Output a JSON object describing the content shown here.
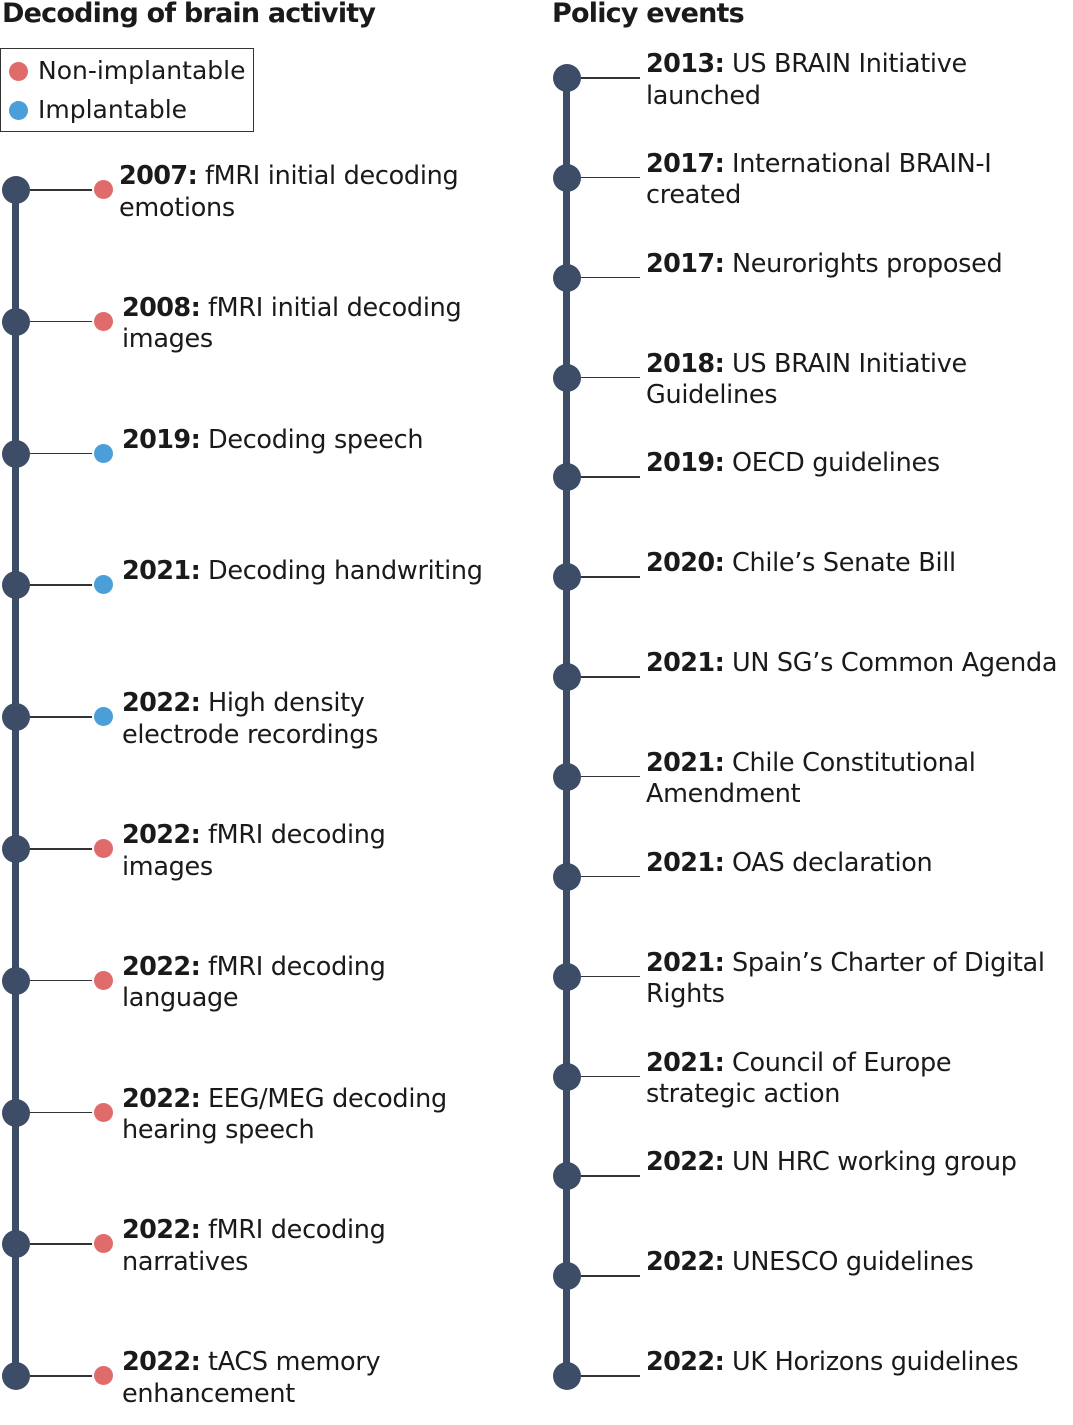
{
  "left": {
    "title": "Decoding of brain activity",
    "legend": [
      {
        "label": "Non-implantable",
        "color": "#e06b6b"
      },
      {
        "label": "Implantable",
        "color": "#4a9fd8"
      }
    ],
    "events": [
      {
        "year": "2007:",
        "lines": [
          "fMRI initial decoding",
          "emotions"
        ],
        "category": "non-implantable"
      },
      {
        "year": "2008:",
        "lines": [
          "fMRI initial decoding",
          "images"
        ],
        "category": "non-implantable"
      },
      {
        "year": "2019:",
        "lines": [
          "Decoding speech"
        ],
        "category": "implantable"
      },
      {
        "year": "2021:",
        "lines": [
          "Decoding handwriting"
        ],
        "category": "implantable"
      },
      {
        "year": "2022:",
        "lines": [
          "High density",
          "electrode recordings"
        ],
        "category": "implantable"
      },
      {
        "year": "2022:",
        "lines": [
          "fMRI decoding",
          "images"
        ],
        "category": "non-implantable"
      },
      {
        "year": "2022:",
        "lines": [
          "fMRI decoding",
          "language"
        ],
        "category": "non-implantable"
      },
      {
        "year": "2022:",
        "lines": [
          "EEG/MEG decoding",
          "hearing speech"
        ],
        "category": "non-implantable"
      },
      {
        "year": "2022:",
        "lines": [
          "fMRI decoding",
          "narratives"
        ],
        "category": "non-implantable"
      },
      {
        "year": "2022:",
        "lines": [
          "tACS memory",
          "enhancement"
        ],
        "category": "non-implantable"
      }
    ]
  },
  "right": {
    "title": "Policy events",
    "events": [
      {
        "year": "2013:",
        "lines": [
          "US BRAIN Initiative",
          "launched"
        ]
      },
      {
        "year": "2017:",
        "lines": [
          "International BRAIN-I",
          "created"
        ]
      },
      {
        "year": "2017:",
        "lines": [
          "Neurorights proposed"
        ]
      },
      {
        "year": "2018:",
        "lines": [
          "US BRAIN Initiative",
          "Guidelines"
        ]
      },
      {
        "year": "2019:",
        "lines": [
          "OECD guidelines"
        ]
      },
      {
        "year": "2020:",
        "lines": [
          "Chile’s Senate Bill"
        ]
      },
      {
        "year": "2021:",
        "lines": [
          "UN SG’s Common Agenda"
        ]
      },
      {
        "year": "2021:",
        "lines": [
          "Chile Constitutional",
          "Amendment"
        ]
      },
      {
        "year": "2021:",
        "lines": [
          "OAS declaration"
        ]
      },
      {
        "year": "2021:",
        "lines": [
          "Spain’s Charter of Digital",
          "Rights"
        ]
      },
      {
        "year": "2021:",
        "lines": [
          "Council of Europe",
          "strategic action"
        ]
      },
      {
        "year": "2022:",
        "lines": [
          "UN HRC working group"
        ]
      },
      {
        "year": "2022:",
        "lines": [
          "UNESCO guidelines"
        ]
      },
      {
        "year": "2022:",
        "lines": [
          "UK Horizons guidelines"
        ]
      }
    ]
  }
}
